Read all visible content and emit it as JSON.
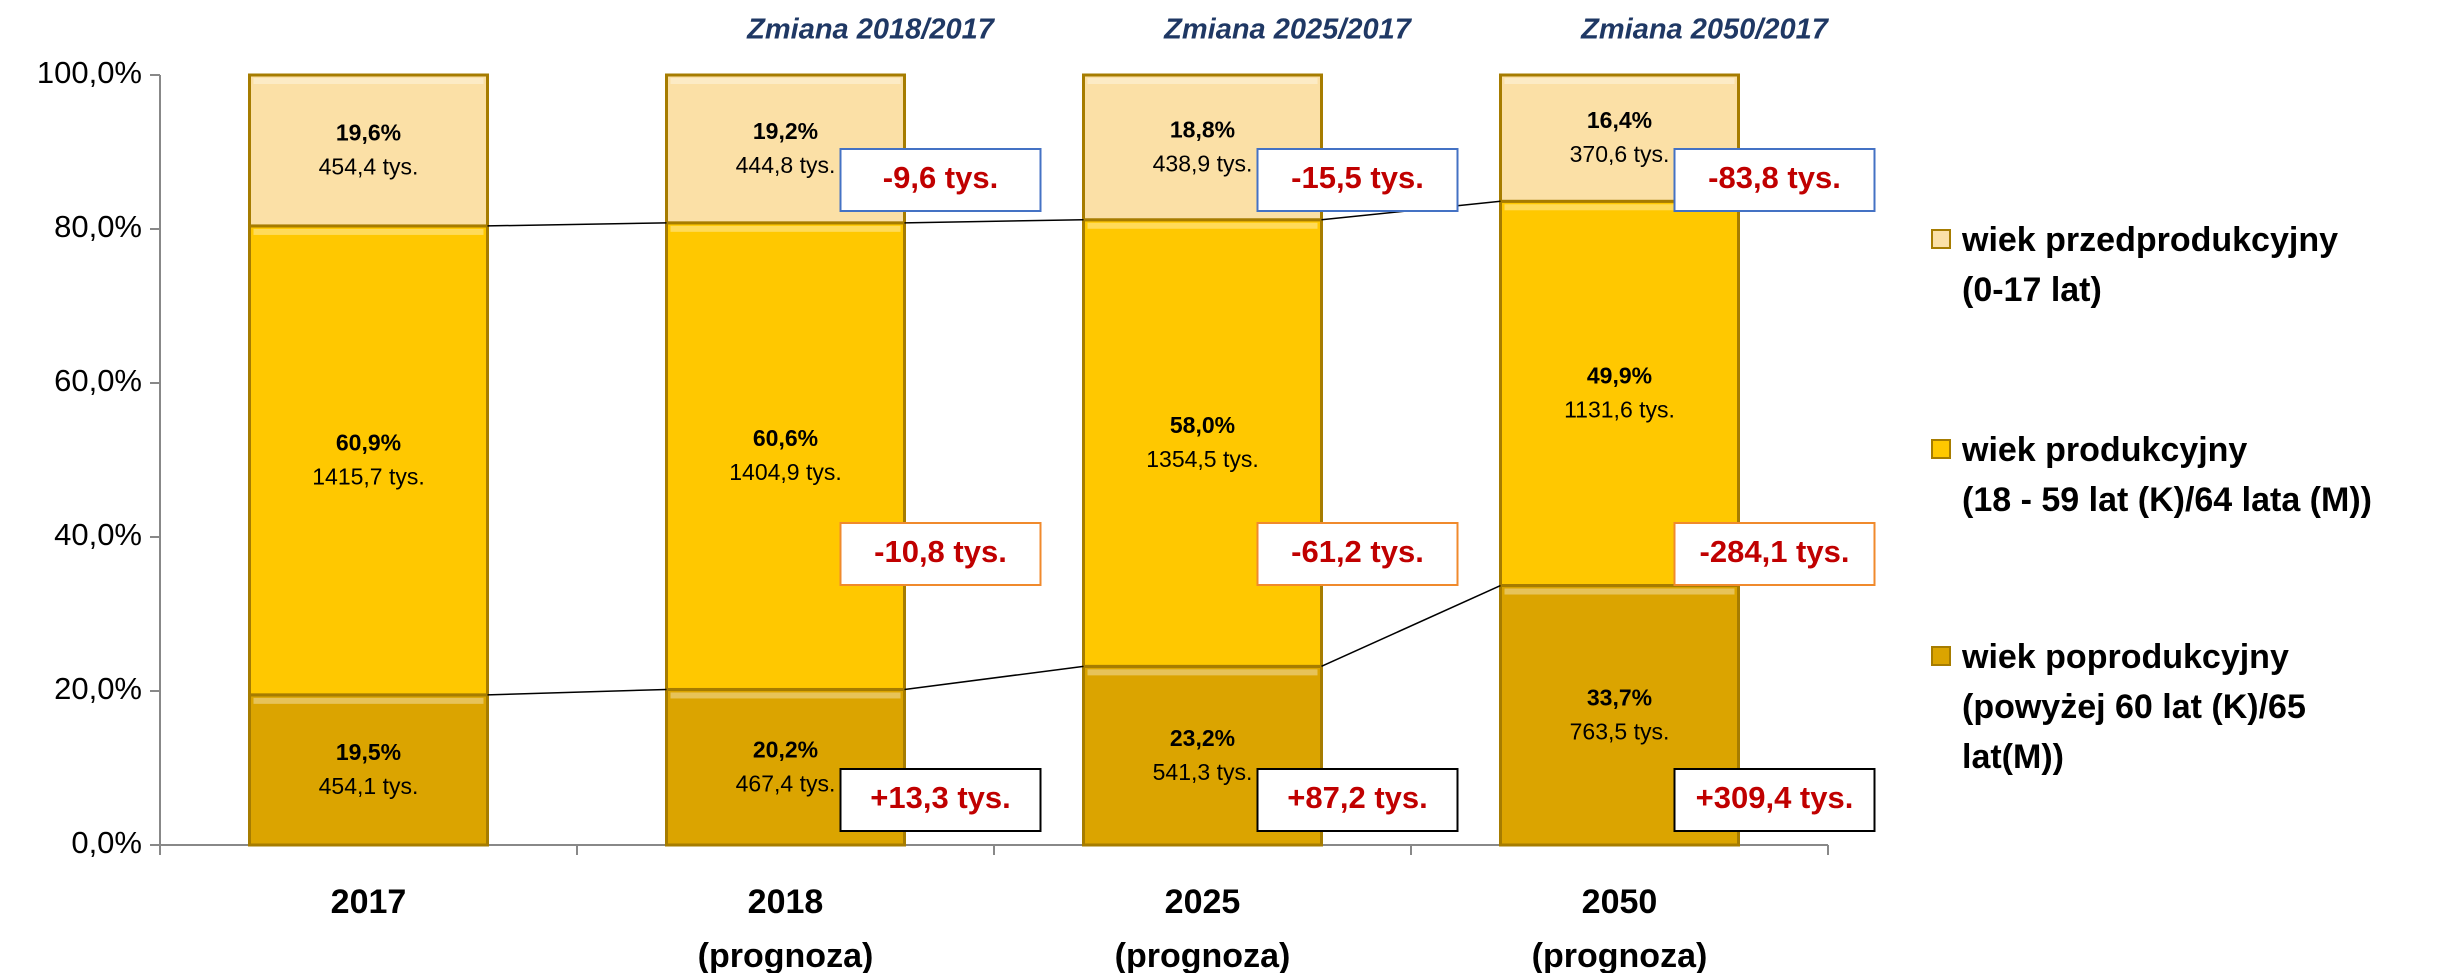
{
  "chart_data": {
    "type": "stacked_bar",
    "categories": [
      "2017",
      "2018\n(prognoza)",
      "2025\n(prognoza)",
      "2050\n(prognoza)"
    ],
    "series": [
      {
        "name": "wiek poprodukcyjny\n(powyżej 60 lat (K)/65\nlat(M))",
        "color": "#dba400",
        "values": [
          19.5,
          20.2,
          23.2,
          33.7
        ],
        "value_labels": [
          "19,5%",
          "20,2%",
          "23,2%",
          "33,7%"
        ],
        "amounts": [
          454.1,
          467.4,
          541.3,
          763.5
        ],
        "amount_labels": [
          "454,1 tys.",
          "467,4 tys.",
          "541,3 tys.",
          "763,5 tys."
        ]
      },
      {
        "name": "wiek produkcyjny\n(18 - 59 lat (K)/64 lata (M))",
        "color": "#ffc800",
        "values": [
          60.9,
          60.6,
          58.0,
          49.9
        ],
        "value_labels": [
          "60,9%",
          "60,6%",
          "58,0%",
          "49,9%"
        ],
        "amounts": [
          1415.7,
          1404.9,
          1354.5,
          1131.6
        ],
        "amount_labels": [
          "1415,7 tys.",
          "1404,9 tys.",
          "1354,5 tys.",
          "1131,6 tys."
        ]
      },
      {
        "name": "wiek przedprodukcyjny\n (0-17 lat)",
        "color": "#fbe0a6",
        "values": [
          19.6,
          19.2,
          18.8,
          16.4
        ],
        "value_labels": [
          "19,6%",
          "19,2%",
          "18,8%",
          "16,4%"
        ],
        "amounts": [
          454.4,
          444.8,
          438.9,
          370.6
        ],
        "amount_labels": [
          "454,4 tys.",
          "444,8 tys.",
          "438,9 tys.",
          "370,6 tys."
        ]
      }
    ],
    "ylim": [
      0,
      100
    ],
    "yticks": [
      {
        "value": 0,
        "label": "0,0%"
      },
      {
        "value": 20,
        "label": "20,0%"
      },
      {
        "value": 40,
        "label": "40,0%"
      },
      {
        "value": 60,
        "label": "60,0%"
      },
      {
        "value": 80,
        "label": "80,0%"
      },
      {
        "value": 100,
        "label": "100,0%"
      }
    ],
    "grid": false,
    "legend": "right",
    "changes": [
      {
        "category": 1,
        "header": "Zmiana 2018/2017",
        "labels": [
          "+13,3 tys.",
          "-10,8 tys.",
          "-9,6 tys."
        ]
      },
      {
        "category": 2,
        "header": "Zmiana 2025/2017",
        "labels": [
          "+87,2 tys.",
          "-61,2 tys.",
          "-15,5 tys."
        ]
      },
      {
        "category": 3,
        "header": "Zmiana 2050/2017",
        "labels": [
          "+309,4 tys.",
          "-284,1 tys.",
          "-83,8 tys."
        ]
      }
    ]
  }
}
